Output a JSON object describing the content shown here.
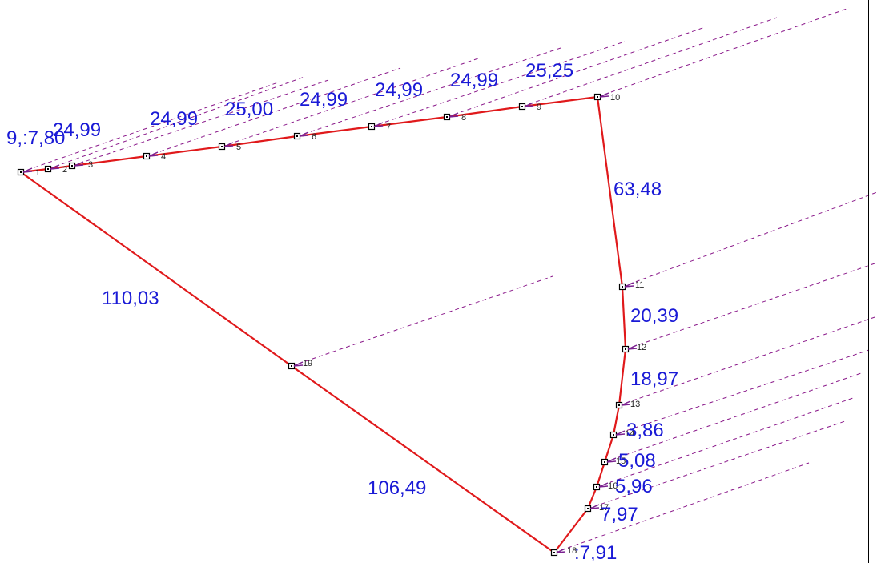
{
  "colors": {
    "boundary": "#e0191b",
    "guide": "#8b1a8b",
    "dimension_text": "#1a1ad6",
    "marker": "#000000",
    "arrow": "#7a1f8f"
  },
  "point_labels": [
    "1",
    "2",
    "3",
    "4",
    "5",
    "6",
    "7",
    "8",
    "9",
    "10",
    "11",
    "12",
    "13",
    "14",
    "15",
    "16",
    "17",
    "18",
    "19"
  ],
  "dimension_labels": [
    "9,:7,80",
    "24,99",
    "24,99",
    "25,00",
    "24,99",
    "24,99",
    "24,99",
    "25,25",
    "63,48",
    "20,39",
    "18,97",
    "3,86",
    "5,08",
    "5,96",
    "7,97",
    ":7,91",
    "110,03",
    "106,49"
  ]
}
